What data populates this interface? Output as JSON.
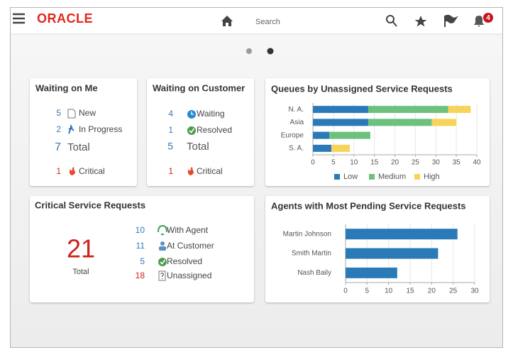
{
  "header": {
    "brand": "ORACLE",
    "search": "Search",
    "notifications": "4"
  },
  "widgets": {
    "waiting_on_me": {
      "title": "Waiting on Me",
      "items": [
        {
          "count": 5,
          "label": "New"
        },
        {
          "count": 2,
          "label": "In Progress"
        }
      ],
      "total": {
        "count": 7,
        "label": "Total"
      },
      "critical": {
        "count": 1,
        "label": "Critical"
      }
    },
    "waiting_on_customer": {
      "title": "Waiting on Customer",
      "items": [
        {
          "count": 4,
          "label": "Waiting"
        },
        {
          "count": 1,
          "label": "Resolved"
        }
      ],
      "total": {
        "count": 5,
        "label": "Total"
      },
      "critical": {
        "count": 1,
        "label": "Critical"
      }
    },
    "critical_requests": {
      "title": "Critical Service Requests",
      "total": {
        "count": 21,
        "label": "Total"
      },
      "items": [
        {
          "count": 10,
          "label": "With Agent"
        },
        {
          "count": 11,
          "label": "At Customer"
        },
        {
          "count": 5,
          "label": "Resolved"
        },
        {
          "count": 18,
          "label": "Unassigned"
        }
      ]
    }
  },
  "chart_data": [
    {
      "type": "bar",
      "orientation": "horizontal",
      "stacked": true,
      "title": "Queues by Unassigned Service Requests",
      "categories": [
        "N. A.",
        "Asia",
        "Europe",
        "S. A."
      ],
      "series": [
        {
          "name": "Low",
          "color": "#2a7ab8",
          "values": [
            13.5,
            13.5,
            4,
            4.5
          ]
        },
        {
          "name": "Medium",
          "color": "#6cc17e",
          "values": [
            19.5,
            15.5,
            10,
            0
          ]
        },
        {
          "name": "High",
          "color": "#f8d35a",
          "values": [
            5.5,
            6,
            0,
            4.5
          ]
        }
      ],
      "xlim": [
        0,
        40
      ],
      "xticks": [
        0,
        5,
        10,
        15,
        20,
        25,
        30,
        35,
        40
      ],
      "grid": true,
      "legend": "bottom"
    },
    {
      "type": "bar",
      "orientation": "horizontal",
      "title": "Agents with Most Pending Service Requests",
      "categories": [
        "Martin Johnson",
        "Smith Martin",
        "Nash Baily"
      ],
      "values": [
        26,
        21.5,
        12
      ],
      "color": "#2a7ab8",
      "xlim": [
        0,
        30
      ],
      "xticks": [
        0,
        5,
        10,
        15,
        20,
        25,
        30
      ],
      "grid": true
    }
  ]
}
